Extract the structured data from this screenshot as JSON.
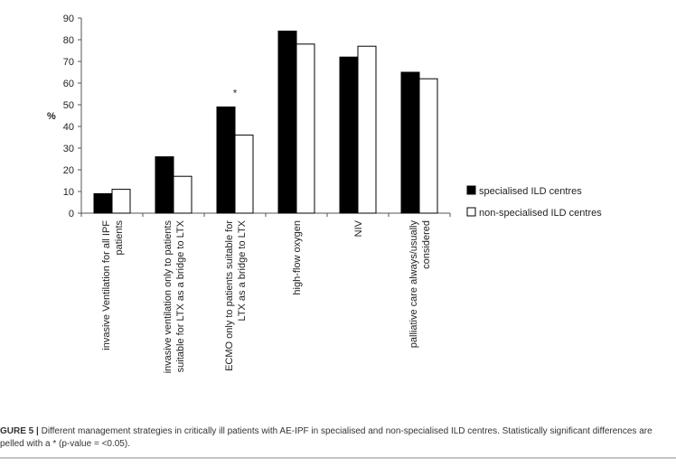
{
  "chart_data": {
    "type": "bar",
    "y_label": "%",
    "categories": [
      "invasive Ventilation for all IPF\npatients",
      "invasive ventilation only to patients\nsuitable for LTX as a bridge to LTX",
      "ECMO only to patients suitable for\nLTX as a bridge to LTX",
      "high-flow oxygen",
      "NIV",
      "palliative care always/usually\nconsidered"
    ],
    "series": [
      {
        "name": "specialised  ILD centres",
        "color": "#000000",
        "values": [
          9,
          26,
          49,
          84,
          72,
          65
        ]
      },
      {
        "name": "non-specialised ILD centres",
        "color": "#ffffff",
        "values": [
          11,
          17,
          36,
          78,
          77,
          62
        ]
      }
    ],
    "annotation": "*",
    "ylim": [
      0,
      90
    ],
    "yticks": [
      0,
      10,
      20,
      30,
      40,
      50,
      60,
      70,
      80,
      90
    ],
    "legend": "right"
  },
  "caption": {
    "label": "GURE 5 |",
    "line1": "Different management strategies in critically ill patients with AE-IPF in specialised and non-specialised ILD centres. Statistically significant differences are",
    "line2": "pelled with a * (p-value = <0.05)."
  }
}
